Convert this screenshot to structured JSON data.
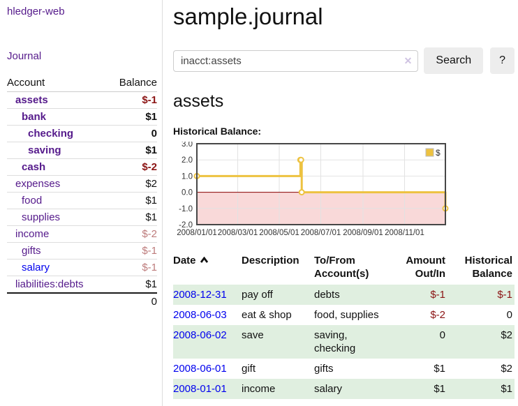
{
  "app": {
    "brand": "hledger-web",
    "nav_journal": "Journal"
  },
  "sidebar": {
    "accounts_header": {
      "account": "Account",
      "balance": "Balance"
    },
    "accounts": [
      {
        "name": "assets",
        "balance": "$-1",
        "level": 0,
        "emph": true
      },
      {
        "name": "bank",
        "balance": "$1",
        "level": 1,
        "emph": true
      },
      {
        "name": "checking",
        "balance": "0",
        "level": 2,
        "emph": true
      },
      {
        "name": "saving",
        "balance": "$1",
        "level": 2,
        "emph": true
      },
      {
        "name": "cash",
        "balance": "$-2",
        "level": 1,
        "emph": true
      },
      {
        "name": "expenses",
        "balance": "$2",
        "level": 0,
        "emph": false
      },
      {
        "name": "food",
        "balance": "$1",
        "level": 1,
        "emph": false
      },
      {
        "name": "supplies",
        "balance": "$1",
        "level": 1,
        "emph": false
      },
      {
        "name": "income",
        "balance": "$-2",
        "level": 0,
        "emph": false
      },
      {
        "name": "gifts",
        "balance": "$-1",
        "level": 1,
        "emph": false
      },
      {
        "name": "salary",
        "balance": "$-1",
        "level": 1,
        "emph": false,
        "link_color": "#0000ee"
      },
      {
        "name": "liabilities:debts",
        "balance": "$1",
        "level": 0,
        "emph": false
      }
    ],
    "total": "0"
  },
  "header": {
    "title": "sample.journal"
  },
  "search": {
    "value": "inacct:assets",
    "clear_icon": "✕",
    "button": "Search",
    "help": "?"
  },
  "account_page": {
    "title": "assets",
    "chart_label": "Historical Balance:"
  },
  "chart_data": {
    "type": "line",
    "step": true,
    "title": "Historical Balance",
    "series": [
      {
        "name": "$",
        "color": "#edc240",
        "points": [
          [
            "2008-01-01",
            1
          ],
          [
            "2008-06-01",
            2
          ],
          [
            "2008-06-02",
            2
          ],
          [
            "2008-06-03",
            0
          ],
          [
            "2008-12-31",
            -1
          ]
        ]
      }
    ],
    "xlim": [
      "2008-01-01",
      "2008-12-31"
    ],
    "ylim": [
      -2,
      3
    ],
    "yticks": [
      3,
      2,
      1,
      0,
      -1,
      -2
    ],
    "ytick_labels": [
      "3.0",
      "2.0",
      "1.0",
      "0.0",
      "-1.0",
      "-2.0"
    ],
    "xticks": [
      "2008-01-01",
      "2008-03-01",
      "2008-05-01",
      "2008-07-01",
      "2008-09-01",
      "2008-11-01"
    ],
    "xtick_labels": [
      "2008/01/01",
      "2008/03/01",
      "2008/05/01",
      "2008/07/01",
      "2008/09/01",
      "2008/11/01"
    ],
    "legend": {
      "label": "$",
      "position": "top-right"
    },
    "grid": true,
    "colors": {
      "line": "#edc240",
      "marker_fill": "#ffffff",
      "negative_region": "#f9d9d9",
      "zero_line": "#8b0000",
      "border": "#474747",
      "gridline": "#e2e2e2"
    }
  },
  "register": {
    "columns": [
      "Date",
      "Description",
      "To/From Account(s)",
      "Amount Out/In",
      "Historical Balance"
    ],
    "sort": "ascending",
    "rows": [
      {
        "date": "2008-12-31",
        "description": "pay off",
        "accounts": "debts",
        "amount": "$-1",
        "balance": "$-1"
      },
      {
        "date": "2008-06-03",
        "description": "eat & shop",
        "accounts": "food, supplies",
        "amount": "$-2",
        "balance": "0"
      },
      {
        "date": "2008-06-02",
        "description": "save",
        "accounts": "saving, checking",
        "amount": "0",
        "balance": "$2"
      },
      {
        "date": "2008-06-01",
        "description": "gift",
        "accounts": "gifts",
        "amount": "$1",
        "balance": "$2"
      },
      {
        "date": "2008-01-01",
        "description": "income",
        "accounts": "salary",
        "amount": "$1",
        "balance": "$1"
      }
    ]
  },
  "colors": {
    "link_purple": "#551a8b",
    "link_blue": "#0000ee",
    "negative_strong": "#8b1414",
    "negative_muted": "#bd7b7b",
    "row_green": "#e0efe0"
  }
}
